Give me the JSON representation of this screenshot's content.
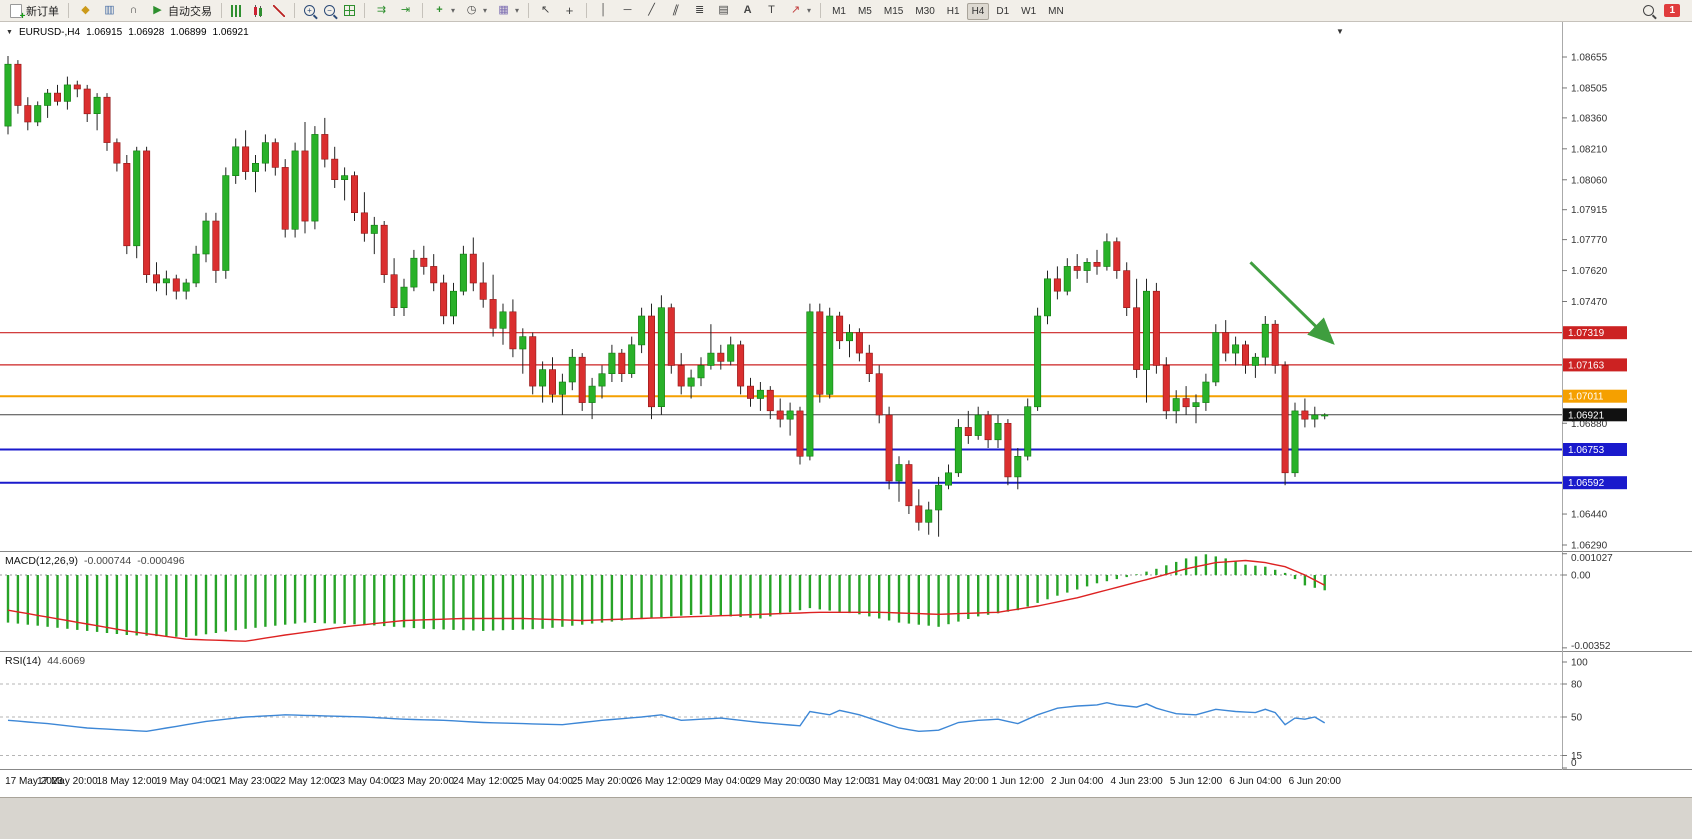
{
  "toolbar": {
    "new_order": "新订单",
    "autotrading": "自动交易",
    "timeframes": [
      "M1",
      "M5",
      "M15",
      "M30",
      "H1",
      "H4",
      "D1",
      "W1",
      "MN"
    ],
    "active_timeframe": "H4",
    "notification_count": "1"
  },
  "chart_header": {
    "symbol_period": "EURUSD-,H4",
    "open": "1.06915",
    "high": "1.06928",
    "low": "1.06899",
    "close": "1.06921"
  },
  "colors": {
    "bull": "#29b129",
    "bear": "#da2f2f",
    "bull_edge": "#0e7a0e",
    "bear_edge": "#8f1717",
    "wick": "#222222",
    "macd_hist": "#27a327",
    "macd_signal": "#dd2222",
    "rsi": "#3d87d6"
  },
  "chart_data": {
    "type": "candlestick",
    "symbol": "EURUSD-",
    "timeframe": "H4",
    "candles": [
      [
        1.0832,
        1.0866,
        1.0828,
        1.0862
      ],
      [
        1.0862,
        1.0864,
        1.0838,
        1.0842
      ],
      [
        1.0842,
        1.0846,
        1.083,
        1.0834
      ],
      [
        1.0834,
        1.0844,
        1.0832,
        1.0842
      ],
      [
        1.0842,
        1.085,
        1.0836,
        1.0848
      ],
      [
        1.0848,
        1.0852,
        1.0842,
        1.0844
      ],
      [
        1.0844,
        1.0856,
        1.084,
        1.0852
      ],
      [
        1.0852,
        1.0854,
        1.0846,
        1.085
      ],
      [
        1.085,
        1.0852,
        1.0834,
        1.0838
      ],
      [
        1.0838,
        1.0848,
        1.083,
        1.0846
      ],
      [
        1.0846,
        1.0848,
        1.082,
        1.0824
      ],
      [
        1.0824,
        1.0826,
        1.081,
        1.0814
      ],
      [
        1.0814,
        1.0818,
        1.077,
        1.0774
      ],
      [
        1.0774,
        1.0822,
        1.0768,
        1.082
      ],
      [
        1.082,
        1.0822,
        1.0756,
        1.076
      ],
      [
        1.076,
        1.0766,
        1.0752,
        1.0756
      ],
      [
        1.0756,
        1.0762,
        1.075,
        1.0758
      ],
      [
        1.0758,
        1.076,
        1.0748,
        1.0752
      ],
      [
        1.0752,
        1.0758,
        1.0748,
        1.0756
      ],
      [
        1.0756,
        1.0774,
        1.0754,
        1.077
      ],
      [
        1.077,
        1.079,
        1.0766,
        1.0786
      ],
      [
        1.0786,
        1.079,
        1.0756,
        1.0762
      ],
      [
        1.0762,
        1.0812,
        1.0758,
        1.0808
      ],
      [
        1.0808,
        1.0826,
        1.0804,
        1.0822
      ],
      [
        1.0822,
        1.083,
        1.0806,
        1.081
      ],
      [
        1.081,
        1.0818,
        1.08,
        1.0814
      ],
      [
        1.0814,
        1.0828,
        1.081,
        1.0824
      ],
      [
        1.0824,
        1.0826,
        1.0808,
        1.0812
      ],
      [
        1.0812,
        1.0816,
        1.0778,
        1.0782
      ],
      [
        1.0782,
        1.0824,
        1.0778,
        1.082
      ],
      [
        1.082,
        1.0834,
        1.078,
        1.0786
      ],
      [
        1.0786,
        1.0832,
        1.0782,
        1.0828
      ],
      [
        1.0828,
        1.0836,
        1.0812,
        1.0816
      ],
      [
        1.0816,
        1.0822,
        1.0802,
        1.0806
      ],
      [
        1.0806,
        1.0812,
        1.0796,
        1.0808
      ],
      [
        1.0808,
        1.081,
        1.0786,
        1.079
      ],
      [
        1.079,
        1.08,
        1.0776,
        1.078
      ],
      [
        1.078,
        1.0788,
        1.077,
        1.0784
      ],
      [
        1.0784,
        1.0786,
        1.0756,
        1.076
      ],
      [
        1.076,
        1.0768,
        1.074,
        1.0744
      ],
      [
        1.0744,
        1.0758,
        1.074,
        1.0754
      ],
      [
        1.0754,
        1.0772,
        1.0752,
        1.0768
      ],
      [
        1.0768,
        1.0774,
        1.076,
        1.0764
      ],
      [
        1.0764,
        1.077,
        1.0752,
        1.0756
      ],
      [
        1.0756,
        1.076,
        1.0736,
        1.074
      ],
      [
        1.074,
        1.0756,
        1.0736,
        1.0752
      ],
      [
        1.0752,
        1.0774,
        1.075,
        1.077
      ],
      [
        1.077,
        1.0778,
        1.0752,
        1.0756
      ],
      [
        1.0756,
        1.0766,
        1.0744,
        1.0748
      ],
      [
        1.0748,
        1.076,
        1.073,
        1.0734
      ],
      [
        1.0734,
        1.0746,
        1.0726,
        1.0742
      ],
      [
        1.0742,
        1.0748,
        1.072,
        1.0724
      ],
      [
        1.0724,
        1.0734,
        1.0712,
        1.073
      ],
      [
        1.073,
        1.0732,
        1.0702,
        1.0706
      ],
      [
        1.0706,
        1.0718,
        1.0698,
        1.0714
      ],
      [
        1.0714,
        1.072,
        1.0698,
        1.0702
      ],
      [
        1.0702,
        1.0712,
        1.0692,
        1.0708
      ],
      [
        1.0708,
        1.0724,
        1.0704,
        1.072
      ],
      [
        1.072,
        1.0722,
        1.0694,
        1.0698
      ],
      [
        1.0698,
        1.071,
        1.069,
        1.0706
      ],
      [
        1.0706,
        1.0716,
        1.07,
        1.0712
      ],
      [
        1.0712,
        1.0726,
        1.0708,
        1.0722
      ],
      [
        1.0722,
        1.0724,
        1.0708,
        1.0712
      ],
      [
        1.0712,
        1.073,
        1.071,
        1.0726
      ],
      [
        1.0726,
        1.0744,
        1.0722,
        1.074
      ],
      [
        1.074,
        1.0746,
        1.069,
        1.0696
      ],
      [
        1.0696,
        1.075,
        1.0692,
        1.0744
      ],
      [
        1.0744,
        1.0746,
        1.0712,
        1.0716
      ],
      [
        1.0716,
        1.0722,
        1.0702,
        1.0706
      ],
      [
        1.0706,
        1.0714,
        1.07,
        1.071
      ],
      [
        1.071,
        1.072,
        1.0706,
        1.0716
      ],
      [
        1.0716,
        1.0736,
        1.0714,
        1.0722
      ],
      [
        1.0722,
        1.0726,
        1.0714,
        1.0718
      ],
      [
        1.0718,
        1.073,
        1.0716,
        1.0726
      ],
      [
        1.0726,
        1.0728,
        1.0702,
        1.0706
      ],
      [
        1.0706,
        1.071,
        1.0696,
        1.07
      ],
      [
        1.07,
        1.0708,
        1.0694,
        1.0704
      ],
      [
        1.0704,
        1.0706,
        1.069,
        1.0694
      ],
      [
        1.0694,
        1.07,
        1.0686,
        1.069
      ],
      [
        1.069,
        1.0698,
        1.0682,
        1.0694
      ],
      [
        1.0694,
        1.0696,
        1.0668,
        1.0672
      ],
      [
        1.0672,
        1.0746,
        1.067,
        1.0742
      ],
      [
        1.0742,
        1.0746,
        1.0698,
        1.0702
      ],
      [
        1.0702,
        1.0744,
        1.07,
        1.074
      ],
      [
        1.074,
        1.0742,
        1.0724,
        1.0728
      ],
      [
        1.0728,
        1.0736,
        1.072,
        1.0732
      ],
      [
        1.0732,
        1.0734,
        1.0718,
        1.0722
      ],
      [
        1.0722,
        1.0726,
        1.0708,
        1.0712
      ],
      [
        1.0712,
        1.0716,
        1.0688,
        1.0692
      ],
      [
        1.0692,
        1.0696,
        1.0656,
        1.066
      ],
      [
        1.066,
        1.0672,
        1.065,
        1.0668
      ],
      [
        1.0668,
        1.067,
        1.0644,
        1.0648
      ],
      [
        1.0648,
        1.0656,
        1.0636,
        1.064
      ],
      [
        1.064,
        1.065,
        1.0634,
        1.0646
      ],
      [
        1.0646,
        1.0662,
        1.0633,
        1.0658
      ],
      [
        1.0658,
        1.0668,
        1.0656,
        1.0664
      ],
      [
        1.0664,
        1.069,
        1.0662,
        1.0686
      ],
      [
        1.0686,
        1.0694,
        1.0678,
        1.0682
      ],
      [
        1.0682,
        1.0696,
        1.068,
        1.0692
      ],
      [
        1.0692,
        1.0694,
        1.0676,
        1.068
      ],
      [
        1.068,
        1.0692,
        1.0676,
        1.0688
      ],
      [
        1.0688,
        1.069,
        1.0658,
        1.0662
      ],
      [
        1.0662,
        1.0676,
        1.0656,
        1.0672
      ],
      [
        1.0672,
        1.07,
        1.067,
        1.0696
      ],
      [
        1.0696,
        1.0744,
        1.0694,
        1.074
      ],
      [
        1.074,
        1.0762,
        1.0736,
        1.0758
      ],
      [
        1.0758,
        1.0764,
        1.0748,
        1.0752
      ],
      [
        1.0752,
        1.0768,
        1.075,
        1.0764
      ],
      [
        1.0764,
        1.077,
        1.0758,
        1.0762
      ],
      [
        1.0762,
        1.0768,
        1.0756,
        1.0766
      ],
      [
        1.0766,
        1.0772,
        1.076,
        1.0764
      ],
      [
        1.0764,
        1.078,
        1.0762,
        1.0776
      ],
      [
        1.0776,
        1.0778,
        1.0758,
        1.0762
      ],
      [
        1.0762,
        1.0766,
        1.074,
        1.0744
      ],
      [
        1.0744,
        1.0758,
        1.071,
        1.0714
      ],
      [
        1.0714,
        1.0758,
        1.0698,
        1.0752
      ],
      [
        1.0752,
        1.0756,
        1.0712,
        1.0716
      ],
      [
        1.0716,
        1.072,
        1.069,
        1.0694
      ],
      [
        1.0694,
        1.0704,
        1.0688,
        1.07
      ],
      [
        1.07,
        1.0706,
        1.0692,
        1.0696
      ],
      [
        1.0696,
        1.0702,
        1.0688,
        1.0698
      ],
      [
        1.0698,
        1.0712,
        1.0694,
        1.0708
      ],
      [
        1.0708,
        1.0736,
        1.0706,
        1.0732
      ],
      [
        1.0732,
        1.0738,
        1.0718,
        1.0722
      ],
      [
        1.0722,
        1.073,
        1.0716,
        1.0726
      ],
      [
        1.0726,
        1.0728,
        1.0712,
        1.0716
      ],
      [
        1.0716,
        1.0722,
        1.071,
        1.072
      ],
      [
        1.072,
        1.074,
        1.0716,
        1.0736
      ],
      [
        1.0736,
        1.0738,
        1.0712,
        1.0716
      ],
      [
        1.0716,
        1.0718,
        1.0658,
        1.0664
      ],
      [
        1.0664,
        1.0698,
        1.0662,
        1.0694
      ],
      [
        1.0694,
        1.07,
        1.0686,
        1.069
      ],
      [
        1.069,
        1.0696,
        1.0686,
        1.0692
      ],
      [
        1.06915,
        1.06928,
        1.06899,
        1.06921
      ]
    ],
    "hlines": [
      {
        "price": 1.07319,
        "color": "#cc2222",
        "width": 1.2
      },
      {
        "price": 1.07163,
        "color": "#cc2222",
        "width": 1.2
      },
      {
        "price": 1.07011,
        "color": "#f5a000",
        "width": 2
      },
      {
        "price": 1.06921,
        "color": "#444444",
        "width": 1
      },
      {
        "price": 1.06753,
        "color": "#1a1acc",
        "width": 2
      },
      {
        "price": 1.06592,
        "color": "#1a1acc",
        "width": 2
      }
    ],
    "arrow": {
      "from_i": 125.5,
      "from_p": 1.0766,
      "to_i": 133.8,
      "to_p": 1.0727,
      "color": "#3f9e3f"
    },
    "price_axis": {
      "ticks": [
        "1.08655",
        "1.08505",
        "1.08360",
        "1.08210",
        "1.08060",
        "1.07915",
        "1.07770",
        "1.07620",
        "1.07470",
        "1.06880",
        "1.06440",
        "1.06290"
      ],
      "tags": [
        {
          "text": "1.07319",
          "color": "#cc2222"
        },
        {
          "text": "1.07163",
          "color": "#cc2222"
        },
        {
          "text": "1.07011",
          "color": "#f5a000"
        },
        {
          "text": "1.06921",
          "color": "#111111"
        },
        {
          "text": "1.06753",
          "color": "#1a1acc"
        },
        {
          "text": "1.06592",
          "color": "#1a1acc"
        }
      ]
    },
    "time_axis": [
      "17 May 2023",
      "17 May 20:00",
      "18 May 12:00",
      "19 May 04:00",
      "21 May 23:00",
      "22 May 12:00",
      "23 May 04:00",
      "23 May 20:00",
      "24 May 12:00",
      "25 May 04:00",
      "25 May 20:00",
      "26 May 12:00",
      "29 May 04:00",
      "29 May 20:00",
      "30 May 12:00",
      "31 May 04:00",
      "31 May 20:00",
      "1 Jun 12:00",
      "2 Jun 04:00",
      "4 Jun 23:00",
      "5 Jun 12:00",
      "6 Jun 04:00",
      "6 Jun 20:00"
    ],
    "macd": {
      "name": "MACD(12,26,9)",
      "value1": "-0.000744",
      "value2": "-0.000496",
      "axis": [
        "0.001027",
        "0.00",
        "-0.00352"
      ],
      "hist_points": [
        [
          0,
          -0.0023
        ],
        [
          6,
          -0.0026
        ],
        [
          12,
          -0.0029
        ],
        [
          18,
          -0.003
        ],
        [
          24,
          -0.0026
        ],
        [
          30,
          -0.0023
        ],
        [
          36,
          -0.0024
        ],
        [
          42,
          -0.0026
        ],
        [
          48,
          -0.0027
        ],
        [
          54,
          -0.0026
        ],
        [
          58,
          -0.0024
        ],
        [
          64,
          -0.0021
        ],
        [
          70,
          -0.0019
        ],
        [
          76,
          -0.0021
        ],
        [
          81,
          -0.0016
        ],
        [
          86,
          -0.0019
        ],
        [
          90,
          -0.0023
        ],
        [
          94,
          -0.0025
        ],
        [
          98,
          -0.002
        ],
        [
          102,
          -0.0017
        ],
        [
          106,
          -0.001
        ],
        [
          110,
          -0.0004
        ],
        [
          113,
          -0.0001
        ],
        [
          116,
          0.0003
        ],
        [
          119,
          0.0008
        ],
        [
          121,
          0.001
        ],
        [
          123,
          0.0008
        ],
        [
          125,
          0.0005
        ],
        [
          127,
          0.0004
        ],
        [
          129,
          0.0001
        ],
        [
          131,
          -0.0005
        ],
        [
          133,
          -0.00074
        ]
      ],
      "signal_points": [
        [
          0,
          -0.0017
        ],
        [
          6,
          -0.0022
        ],
        [
          12,
          -0.0027
        ],
        [
          18,
          -0.0031
        ],
        [
          24,
          -0.0032
        ],
        [
          28,
          -0.0029
        ],
        [
          34,
          -0.0025
        ],
        [
          40,
          -0.0022
        ],
        [
          46,
          -0.0021
        ],
        [
          52,
          -0.0021
        ],
        [
          58,
          -0.0022
        ],
        [
          64,
          -0.0021
        ],
        [
          70,
          -0.002
        ],
        [
          76,
          -0.0019
        ],
        [
          82,
          -0.0018
        ],
        [
          88,
          -0.0018
        ],
        [
          94,
          -0.0019
        ],
        [
          100,
          -0.0018
        ],
        [
          104,
          -0.0015
        ],
        [
          108,
          -0.0011
        ],
        [
          112,
          -0.0006
        ],
        [
          116,
          -0.0001
        ],
        [
          119,
          0.0003
        ],
        [
          122,
          0.0006
        ],
        [
          125,
          0.0007
        ],
        [
          127,
          0.0006
        ],
        [
          129,
          0.0004
        ],
        [
          131,
          0.0
        ],
        [
          133,
          -0.000496
        ]
      ]
    },
    "rsi": {
      "name": "RSI(14)",
      "value": "44.6069",
      "axis": [
        "100",
        "80",
        "50",
        "15",
        "0"
      ],
      "levels": [
        80,
        50,
        15
      ],
      "points": [
        [
          0,
          47
        ],
        [
          4,
          44
        ],
        [
          8,
          40
        ],
        [
          12,
          38
        ],
        [
          14,
          37
        ],
        [
          16,
          40
        ],
        [
          20,
          46
        ],
        [
          24,
          50
        ],
        [
          28,
          52
        ],
        [
          32,
          51
        ],
        [
          36,
          50
        ],
        [
          40,
          48
        ],
        [
          44,
          47
        ],
        [
          48,
          45
        ],
        [
          52,
          44
        ],
        [
          56,
          43
        ],
        [
          60,
          47
        ],
        [
          64,
          50
        ],
        [
          66,
          52
        ],
        [
          68,
          47
        ],
        [
          72,
          49
        ],
        [
          76,
          45
        ],
        [
          80,
          42
        ],
        [
          81,
          55
        ],
        [
          83,
          52
        ],
        [
          84,
          56
        ],
        [
          86,
          52
        ],
        [
          88,
          46
        ],
        [
          90,
          40
        ],
        [
          92,
          37
        ],
        [
          94,
          38
        ],
        [
          96,
          45
        ],
        [
          98,
          47
        ],
        [
          100,
          48
        ],
        [
          102,
          44
        ],
        [
          104,
          52
        ],
        [
          106,
          58
        ],
        [
          108,
          60
        ],
        [
          110,
          61
        ],
        [
          111,
          63
        ],
        [
          112,
          61
        ],
        [
          114,
          59
        ],
        [
          115,
          62
        ],
        [
          116,
          58
        ],
        [
          118,
          53
        ],
        [
          120,
          52
        ],
        [
          122,
          57
        ],
        [
          124,
          55
        ],
        [
          126,
          54
        ],
        [
          127,
          57
        ],
        [
          128,
          54
        ],
        [
          129,
          43
        ],
        [
          130,
          49
        ],
        [
          131,
          48
        ],
        [
          132,
          50
        ],
        [
          133,
          44.6
        ]
      ]
    }
  }
}
